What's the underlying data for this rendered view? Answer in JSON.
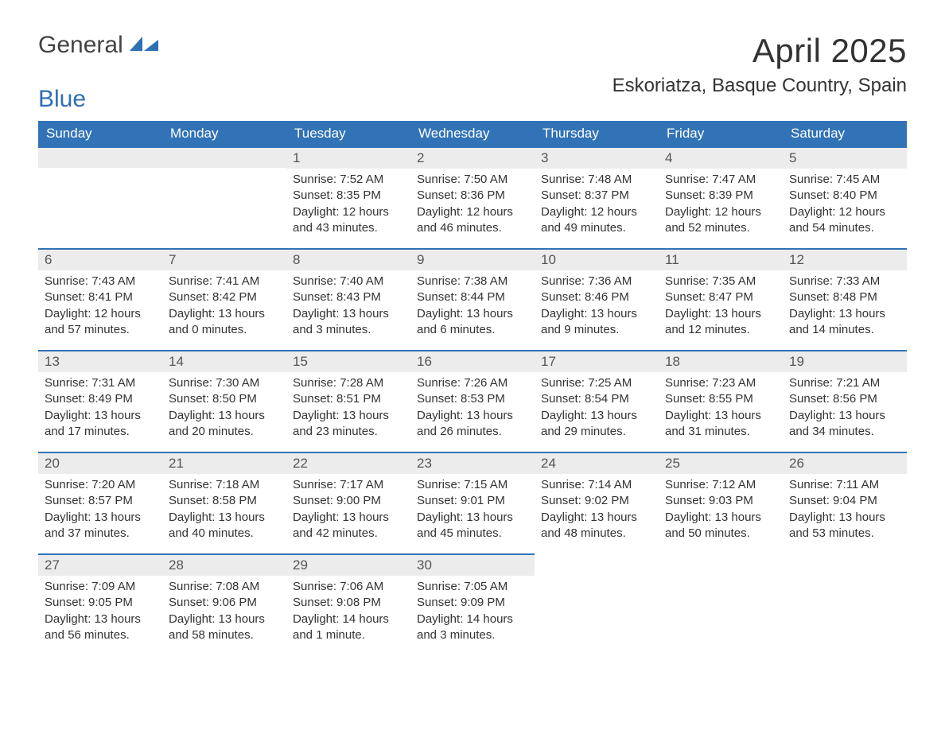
{
  "logo": {
    "text1": "General",
    "text2": "Blue"
  },
  "header": {
    "month_title": "April 2025",
    "location": "Eskoriatza, Basque Country, Spain"
  },
  "colors": {
    "header_bg": "#3173b6",
    "header_text": "#ffffff",
    "daynum_bg": "#ececec",
    "day_border": "#3173b6",
    "logo_blue": "#2f6fb3"
  },
  "weekdays": [
    "Sunday",
    "Monday",
    "Tuesday",
    "Wednesday",
    "Thursday",
    "Friday",
    "Saturday"
  ],
  "leading_blanks": 2,
  "days": [
    {
      "n": "1",
      "sunrise": "Sunrise: 7:52 AM",
      "sunset": "Sunset: 8:35 PM",
      "d1": "Daylight: 12 hours",
      "d2": "and 43 minutes."
    },
    {
      "n": "2",
      "sunrise": "Sunrise: 7:50 AM",
      "sunset": "Sunset: 8:36 PM",
      "d1": "Daylight: 12 hours",
      "d2": "and 46 minutes."
    },
    {
      "n": "3",
      "sunrise": "Sunrise: 7:48 AM",
      "sunset": "Sunset: 8:37 PM",
      "d1": "Daylight: 12 hours",
      "d2": "and 49 minutes."
    },
    {
      "n": "4",
      "sunrise": "Sunrise: 7:47 AM",
      "sunset": "Sunset: 8:39 PM",
      "d1": "Daylight: 12 hours",
      "d2": "and 52 minutes."
    },
    {
      "n": "5",
      "sunrise": "Sunrise: 7:45 AM",
      "sunset": "Sunset: 8:40 PM",
      "d1": "Daylight: 12 hours",
      "d2": "and 54 minutes."
    },
    {
      "n": "6",
      "sunrise": "Sunrise: 7:43 AM",
      "sunset": "Sunset: 8:41 PM",
      "d1": "Daylight: 12 hours",
      "d2": "and 57 minutes."
    },
    {
      "n": "7",
      "sunrise": "Sunrise: 7:41 AM",
      "sunset": "Sunset: 8:42 PM",
      "d1": "Daylight: 13 hours",
      "d2": "and 0 minutes."
    },
    {
      "n": "8",
      "sunrise": "Sunrise: 7:40 AM",
      "sunset": "Sunset: 8:43 PM",
      "d1": "Daylight: 13 hours",
      "d2": "and 3 minutes."
    },
    {
      "n": "9",
      "sunrise": "Sunrise: 7:38 AM",
      "sunset": "Sunset: 8:44 PM",
      "d1": "Daylight: 13 hours",
      "d2": "and 6 minutes."
    },
    {
      "n": "10",
      "sunrise": "Sunrise: 7:36 AM",
      "sunset": "Sunset: 8:46 PM",
      "d1": "Daylight: 13 hours",
      "d2": "and 9 minutes."
    },
    {
      "n": "11",
      "sunrise": "Sunrise: 7:35 AM",
      "sunset": "Sunset: 8:47 PM",
      "d1": "Daylight: 13 hours",
      "d2": "and 12 minutes."
    },
    {
      "n": "12",
      "sunrise": "Sunrise: 7:33 AM",
      "sunset": "Sunset: 8:48 PM",
      "d1": "Daylight: 13 hours",
      "d2": "and 14 minutes."
    },
    {
      "n": "13",
      "sunrise": "Sunrise: 7:31 AM",
      "sunset": "Sunset: 8:49 PM",
      "d1": "Daylight: 13 hours",
      "d2": "and 17 minutes."
    },
    {
      "n": "14",
      "sunrise": "Sunrise: 7:30 AM",
      "sunset": "Sunset: 8:50 PM",
      "d1": "Daylight: 13 hours",
      "d2": "and 20 minutes."
    },
    {
      "n": "15",
      "sunrise": "Sunrise: 7:28 AM",
      "sunset": "Sunset: 8:51 PM",
      "d1": "Daylight: 13 hours",
      "d2": "and 23 minutes."
    },
    {
      "n": "16",
      "sunrise": "Sunrise: 7:26 AM",
      "sunset": "Sunset: 8:53 PM",
      "d1": "Daylight: 13 hours",
      "d2": "and 26 minutes."
    },
    {
      "n": "17",
      "sunrise": "Sunrise: 7:25 AM",
      "sunset": "Sunset: 8:54 PM",
      "d1": "Daylight: 13 hours",
      "d2": "and 29 minutes."
    },
    {
      "n": "18",
      "sunrise": "Sunrise: 7:23 AM",
      "sunset": "Sunset: 8:55 PM",
      "d1": "Daylight: 13 hours",
      "d2": "and 31 minutes."
    },
    {
      "n": "19",
      "sunrise": "Sunrise: 7:21 AM",
      "sunset": "Sunset: 8:56 PM",
      "d1": "Daylight: 13 hours",
      "d2": "and 34 minutes."
    },
    {
      "n": "20",
      "sunrise": "Sunrise: 7:20 AM",
      "sunset": "Sunset: 8:57 PM",
      "d1": "Daylight: 13 hours",
      "d2": "and 37 minutes."
    },
    {
      "n": "21",
      "sunrise": "Sunrise: 7:18 AM",
      "sunset": "Sunset: 8:58 PM",
      "d1": "Daylight: 13 hours",
      "d2": "and 40 minutes."
    },
    {
      "n": "22",
      "sunrise": "Sunrise: 7:17 AM",
      "sunset": "Sunset: 9:00 PM",
      "d1": "Daylight: 13 hours",
      "d2": "and 42 minutes."
    },
    {
      "n": "23",
      "sunrise": "Sunrise: 7:15 AM",
      "sunset": "Sunset: 9:01 PM",
      "d1": "Daylight: 13 hours",
      "d2": "and 45 minutes."
    },
    {
      "n": "24",
      "sunrise": "Sunrise: 7:14 AM",
      "sunset": "Sunset: 9:02 PM",
      "d1": "Daylight: 13 hours",
      "d2": "and 48 minutes."
    },
    {
      "n": "25",
      "sunrise": "Sunrise: 7:12 AM",
      "sunset": "Sunset: 9:03 PM",
      "d1": "Daylight: 13 hours",
      "d2": "and 50 minutes."
    },
    {
      "n": "26",
      "sunrise": "Sunrise: 7:11 AM",
      "sunset": "Sunset: 9:04 PM",
      "d1": "Daylight: 13 hours",
      "d2": "and 53 minutes."
    },
    {
      "n": "27",
      "sunrise": "Sunrise: 7:09 AM",
      "sunset": "Sunset: 9:05 PM",
      "d1": "Daylight: 13 hours",
      "d2": "and 56 minutes."
    },
    {
      "n": "28",
      "sunrise": "Sunrise: 7:08 AM",
      "sunset": "Sunset: 9:06 PM",
      "d1": "Daylight: 13 hours",
      "d2": "and 58 minutes."
    },
    {
      "n": "29",
      "sunrise": "Sunrise: 7:06 AM",
      "sunset": "Sunset: 9:08 PM",
      "d1": "Daylight: 14 hours",
      "d2": "and 1 minute."
    },
    {
      "n": "30",
      "sunrise": "Sunrise: 7:05 AM",
      "sunset": "Sunset: 9:09 PM",
      "d1": "Daylight: 14 hours",
      "d2": "and 3 minutes."
    }
  ]
}
